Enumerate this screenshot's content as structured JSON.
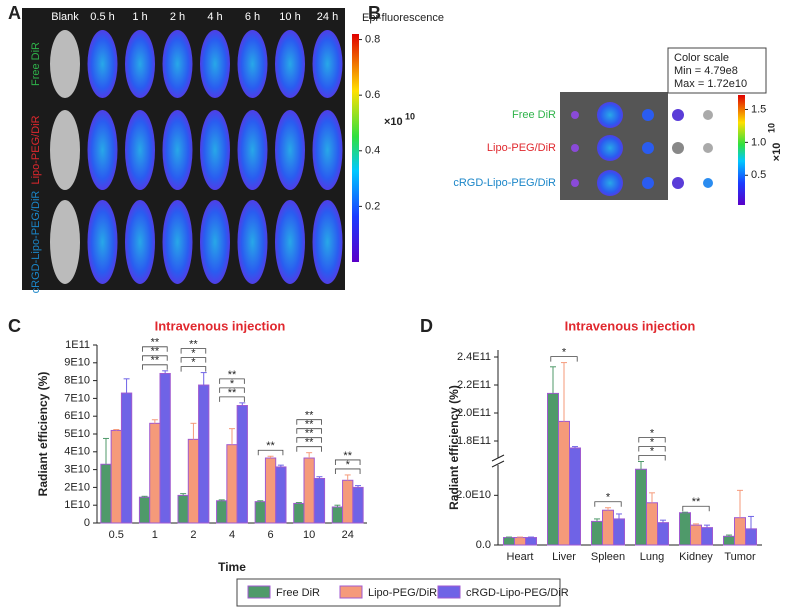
{
  "panel_labels": [
    "A",
    "B",
    "C",
    "D"
  ],
  "panel_a": {
    "columns": [
      "Blank",
      "0.5 h",
      "1 h",
      "2 h",
      "4 h",
      "6 h",
      "10 h",
      "24 h"
    ],
    "rows": [
      {
        "label": "Free DiR",
        "color": "#2fb34a"
      },
      {
        "label": "Lipo-PEG/DiR",
        "color": "#e0282e"
      },
      {
        "label": "cRGD-Lipo-PEG/DiR",
        "color": "#1b86c8"
      }
    ],
    "colorbar_title": "Epi-fluorescence",
    "colorbar_unit": "×10",
    "colorbar_unit_exp": "10",
    "colorbar_lim": [
      0,
      0.82
    ],
    "colorbar_ticks": [
      0.2,
      0.4,
      0.6,
      0.8
    ]
  },
  "panel_b": {
    "scale_title": "Color scale",
    "scale_min": "Min = 4.79e8",
    "scale_max": "Max = 1.72e10",
    "rows": [
      {
        "label": "Free DiR",
        "color": "#2fb34a"
      },
      {
        "label": "Lipo-PEG/DiR",
        "color": "#e0282e"
      },
      {
        "label": "cRGD-Lipo-PEG/DiR",
        "color": "#1b86c8"
      }
    ],
    "colorbar_unit": "×10",
    "colorbar_unit_exp": "10",
    "colorbar_lim": [
      0.048,
      1.72
    ],
    "colorbar_ticks": [
      0.5,
      {
        "value": 1,
        "label": "1.0"
      },
      1.5
    ]
  },
  "chart_data": [
    {
      "type": "bar",
      "title": "Intravenous injection",
      "x_label": "Time",
      "y_label": "Radiant efficiency (%)",
      "categories": [
        "0.5",
        "1",
        "2",
        "4",
        "6",
        "10",
        "24"
      ],
      "series": [
        {
          "name": "Free DiR",
          "color": "#4f9a6a",
          "values": [
            33000000000,
            14500000000,
            15500000000,
            12500000000,
            12000000000,
            11000000000,
            9000000000
          ],
          "errors": [
            14500000000,
            500000000,
            1000000000,
            500000000,
            500000000,
            500000000,
            1000000000
          ]
        },
        {
          "name": "Lipo-PEG/DiR",
          "color": "#f59a7a",
          "values": [
            52000000000,
            56000000000,
            47000000000,
            44000000000,
            36500000000,
            36500000000,
            24000000000
          ],
          "errors": [
            500000000,
            2000000000,
            9000000000,
            9000000000,
            1000000000,
            3000000000,
            3000000000
          ]
        },
        {
          "name": "cRGD-Lipo-PEG/DiR",
          "color": "#6f63e6",
          "values": [
            73000000000,
            84000000000,
            77500000000,
            66000000000,
            31500000000,
            25000000000,
            20000000000
          ],
          "errors": [
            8000000000,
            1500000000,
            7000000000,
            1500000000,
            1000000000,
            1000000000,
            1000000000
          ]
        }
      ],
      "edge_color": "#a05ad0",
      "ylim": [
        0,
        100000000000
      ],
      "yticks": [
        0,
        {
          "value": 10000000000,
          "label": "1E10"
        },
        {
          "value": 20000000000,
          "label": "2E10"
        },
        {
          "value": 30000000000,
          "label": "3E10"
        },
        {
          "value": 40000000000,
          "label": "4E10"
        },
        {
          "value": 50000000000,
          "label": "5E10"
        },
        {
          "value": 60000000000,
          "label": "6E10"
        },
        {
          "value": 70000000000,
          "label": "7E10"
        },
        {
          "value": 80000000000,
          "label": "8E10"
        },
        {
          "value": 90000000000,
          "label": "9E10"
        },
        {
          "value": 100000000000,
          "label": "1E11"
        }
      ],
      "significance": [
        [],
        [
          "**",
          "**",
          "**"
        ],
        [
          "*",
          "*",
          "**"
        ],
        [
          "**",
          "*",
          "**"
        ],
        [
          "**"
        ],
        [
          "**",
          "**",
          "**",
          "**"
        ],
        [
          "*",
          "**"
        ]
      ]
    },
    {
      "type": "bar",
      "title": "Intravenous injection",
      "y_label": "Radiant efficiency (%)",
      "categories": [
        "Heart",
        "Liver",
        "Spleen",
        "Lung",
        "Kidney",
        "Tumor"
      ],
      "series": [
        {
          "name": "Free DiR",
          "color": "#4f9a6a",
          "values": [
            3000000000,
            214000000000,
            9500000000,
            30500000000,
            13000000000,
            3500000000
          ],
          "errors": [
            200000000,
            19000000000,
            1000000000,
            2000000000,
            200000000,
            500000000
          ]
        },
        {
          "name": "Lipo-PEG/DiR",
          "color": "#f59a7a",
          "values": [
            3000000000,
            194000000000,
            14000000000,
            17000000000,
            8000000000,
            11000000000
          ],
          "errors": [
            200000000,
            42000000000,
            1000000000,
            4000000000,
            500000000,
            11000000000
          ]
        },
        {
          "name": "cRGD-Lipo-PEG/DiR",
          "color": "#6f63e6",
          "values": [
            3000000000,
            175000000000,
            10500000000,
            9000000000,
            7000000000,
            6500000000
          ],
          "errors": [
            200000000,
            1000000000,
            2000000000,
            1000000000,
            1000000000,
            5000000000
          ]
        }
      ],
      "edge_color": "#a05ad0",
      "ylim": [
        0,
        245000000000
      ],
      "ybreak": [
        31000000000,
        170000000000
      ],
      "yticks": [
        {
          "value": 0,
          "label": "0.0"
        },
        {
          "value": 20000000000,
          "label": "2.0E10"
        },
        {
          "value": 180000000000,
          "label": "1.8E11"
        },
        {
          "value": 200000000000,
          "label": "2.0E11"
        },
        {
          "value": 220000000000,
          "label": "2.2E11"
        },
        {
          "value": 240000000000,
          "label": "2.4E11"
        }
      ],
      "significance": [
        [],
        [
          "*"
        ],
        [
          "*"
        ],
        [
          "*",
          "*",
          "*"
        ],
        [
          "**"
        ],
        []
      ]
    }
  ]
}
